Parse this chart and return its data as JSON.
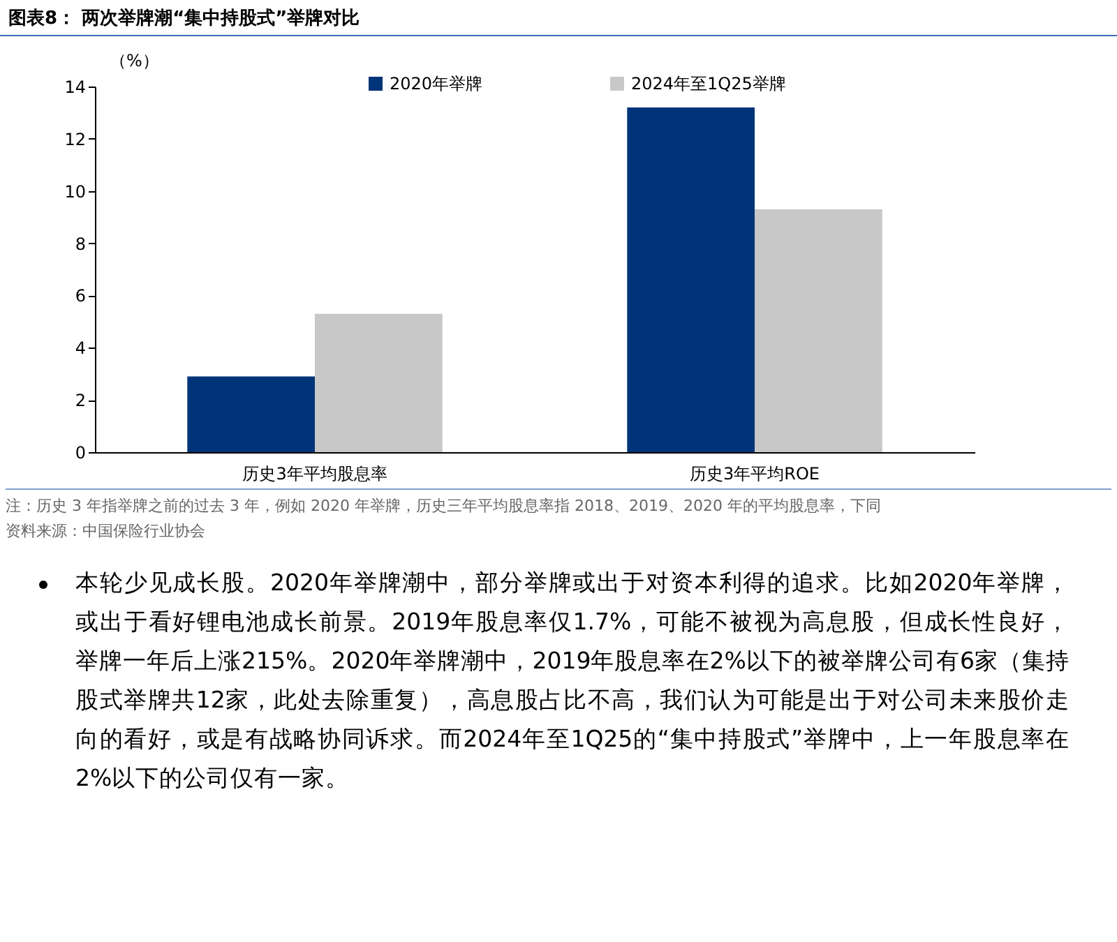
{
  "chart_data": {
    "type": "bar",
    "title": "图表8：  两次举牌潮“集中持股式”举牌对比",
    "ylabel": "（%）",
    "categories": [
      "历史3年平均股息率",
      "历史3年平均ROE"
    ],
    "series": [
      {
        "name": "2020年举牌",
        "color": "#003478",
        "values": [
          2.9,
          13.2
        ]
      },
      {
        "name": "2024年至1Q25举牌",
        "color": "#c8c8c8",
        "values": [
          5.3,
          9.3
        ]
      }
    ],
    "ylim": [
      0,
      14
    ],
    "yticks": [
      0,
      2,
      4,
      6,
      8,
      10,
      12,
      14
    ],
    "grid": false,
    "legend": "top",
    "annotations": [
      "注：历史 3 年指举牌之前的过去 3 年，例如 2020 年举牌，历史三年平均股息率指 2018、2019、2020 年的平均股息率，下同",
      "资料来源：中国保险行业协会",
      "本轮少见成长股。2020年举牌潮中，部分举牌或出于对资本利得的追求。比如2020年举牌，或出于看好锂电池成长前景。2019年股息率仅1.7%，可能不被视为高息股，但成长性良好，举牌一年后上涨215%。2020年举牌潮中，2019年股息率在2%以下的被举牌公司有6家（集持股式举牌共12家，此处去除重复），高息股占比不高，我们认为可能是出于对公司未来股价走向的看好，或是有战略协同诉求。而2024年至1Q25的“集中持股式”举牌中，上一年股息率在2%以下的公司仅有一家。"
    ]
  }
}
